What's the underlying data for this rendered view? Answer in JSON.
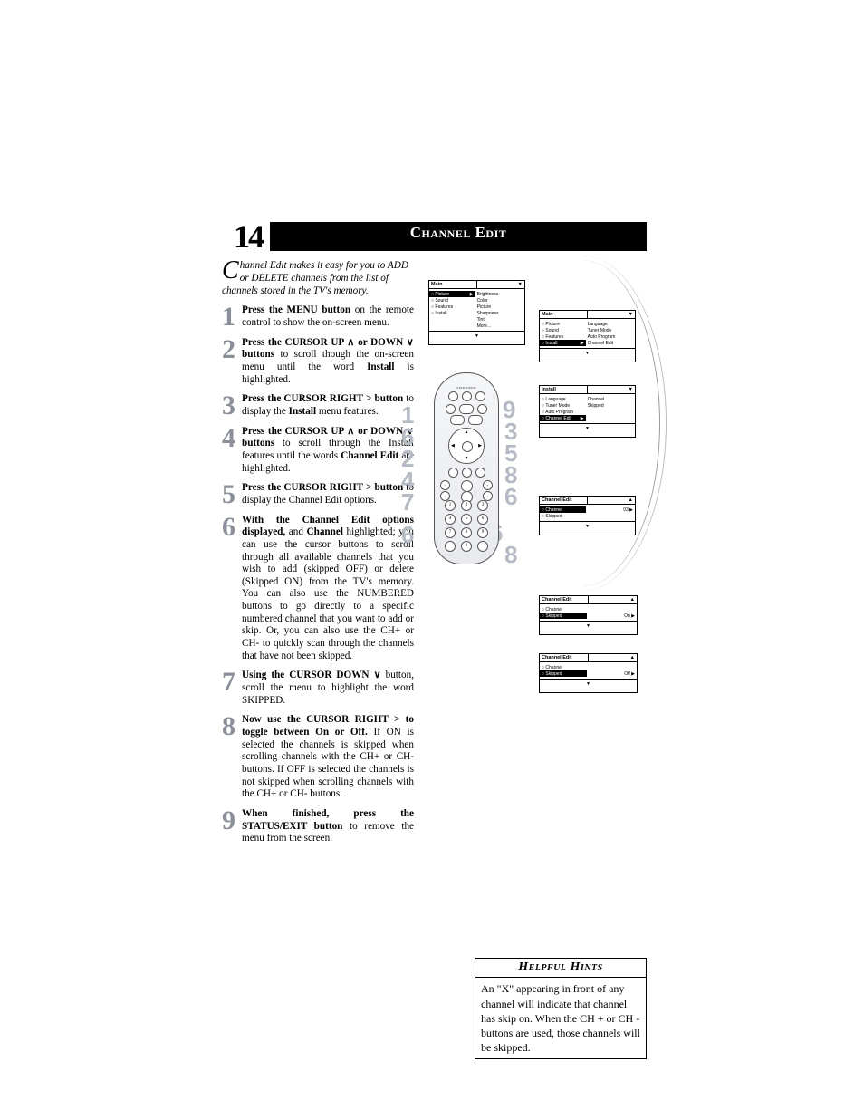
{
  "page_number": "14",
  "title": "Channel Edit",
  "intro_dropcap": "C",
  "intro_text": "hannel Edit makes it easy for you to ADD or DELETE channels from the list of channels stored in the TV's memory.",
  "steps": [
    {
      "n": "1",
      "html": "<b>Press the MENU button</b> on the remote control to show the on-screen menu."
    },
    {
      "n": "2",
      "html": "<b>Press the CURSOR UP ∧ or DOWN ∨ buttons</b> to scroll though the on-screen menu until the word <b>Install</b> is highlighted."
    },
    {
      "n": "3",
      "html": "<b>Press the CURSOR RIGHT &gt; button</b> to display the <b>Install</b> menu features."
    },
    {
      "n": "4",
      "html": "<b>Press the CURSOR UP ∧ or DOWN ∨ buttons</b> to scroll through the Install features until the words <b>Channel Edit</b> are highlighted."
    },
    {
      "n": "5",
      "html": "<b>Press the CURSOR RIGHT &gt; button</b> to display the Channel Edit options."
    },
    {
      "n": "6",
      "html": "<b>With the Channel Edit options displayed,</b> and <b>Channel</b> highlighted; you can use the cursor buttons to scroll through all available channels that you wish to add (skipped OFF) or delete (Skipped ON) from the TV's memory. You can also use the NUMBERED buttons to go directly to a specific numbered channel that you want to add or skip. Or, you can also use the CH+ or CH- to quickly scan through the channels that have not been skipped."
    },
    {
      "n": "7",
      "html": "<b>Using the CURSOR DOWN ∨</b> button, scroll the menu to highlight the word SKIPPED."
    },
    {
      "n": "8",
      "html": "<b>Now use the CURSOR RIGHT &gt; to toggle between On or Off.</b>  If ON is selected the channels is skipped when scrolling channels with the CH+ or CH- buttons. If OFF is selected the channels is not skipped when scrolling channels with the CH+ or CH- buttons."
    },
    {
      "n": "9",
      "html": "<b>When finished, press the STATUS/EXIT button</b> to remove the menu from the screen."
    }
  ],
  "hints_title": "Helpful Hints",
  "hints_body": "An \"X\" appearing in front of any channel will indicate that channel has skip on. When the CH + or CH - buttons are used, those channels will be skipped.",
  "menus": {
    "m1": {
      "head_l": "Main",
      "head_arrow": "▼",
      "left": [
        {
          "t": "Picture",
          "sel": true,
          "arrow": "▶"
        },
        {
          "t": "Sound"
        },
        {
          "t": "Features"
        },
        {
          "t": "Install"
        }
      ],
      "right": [
        "Brightness",
        "Color",
        "Picture",
        "Sharpness",
        "Tint",
        "More..."
      ],
      "foot_arrow": "▼"
    },
    "m2": {
      "head_l": "Main",
      "head_arrow": "▼",
      "left": [
        {
          "t": "Picture"
        },
        {
          "t": "Sound"
        },
        {
          "t": "Features"
        },
        {
          "t": "Install",
          "sel": true,
          "arrow": "▶"
        }
      ],
      "right": [
        "Language",
        "Tuner Mode",
        "Auto Program",
        "Channel Edit"
      ],
      "foot_arrow": "▼"
    },
    "m3": {
      "head_l": "Install",
      "head_arrow": "▼",
      "left": [
        {
          "t": "Language"
        },
        {
          "t": "Tuner Mode"
        },
        {
          "t": "Auto Program"
        },
        {
          "t": "Channel Edit",
          "sel": true,
          "arrow": "▶"
        }
      ],
      "right": [
        "Channel",
        "Skipped"
      ],
      "foot_arrow": "▼"
    },
    "m4": {
      "head_l": "Channel Edit",
      "head_arrow": "▲",
      "left": [
        {
          "t": "Channel",
          "sel": true
        },
        {
          "t": "Skipped"
        }
      ],
      "right_val": "03 ▶",
      "foot_arrow": "▼"
    },
    "m5": {
      "head_l": "Channel Edit",
      "head_arrow": "▲",
      "left": [
        {
          "t": "Channel"
        },
        {
          "t": "Skipped",
          "sel": true
        }
      ],
      "right_val": "On ▶",
      "foot_arrow": "▼"
    },
    "m6": {
      "head_l": "Channel Edit",
      "head_arrow": "▲",
      "left": [
        {
          "t": "Channel"
        },
        {
          "t": "Skipped",
          "sel": true
        }
      ],
      "right_val": "Off ▶",
      "foot_arrow": "▼"
    }
  },
  "big_numbers_left": [
    "1",
    "6",
    "2",
    "4",
    "7",
    "6"
  ],
  "big_numbers_right": [
    "2",
    "4",
    "9",
    "3",
    "5",
    "8",
    "6",
    "6",
    "8"
  ],
  "remote": {
    "label_top": "STATUS/EXIT",
    "numpad": [
      "1",
      "2",
      "3",
      "4",
      "5",
      "6",
      "7",
      "8",
      "9",
      "",
      "0",
      ""
    ],
    "vol": "VOL",
    "ch": "CH"
  }
}
